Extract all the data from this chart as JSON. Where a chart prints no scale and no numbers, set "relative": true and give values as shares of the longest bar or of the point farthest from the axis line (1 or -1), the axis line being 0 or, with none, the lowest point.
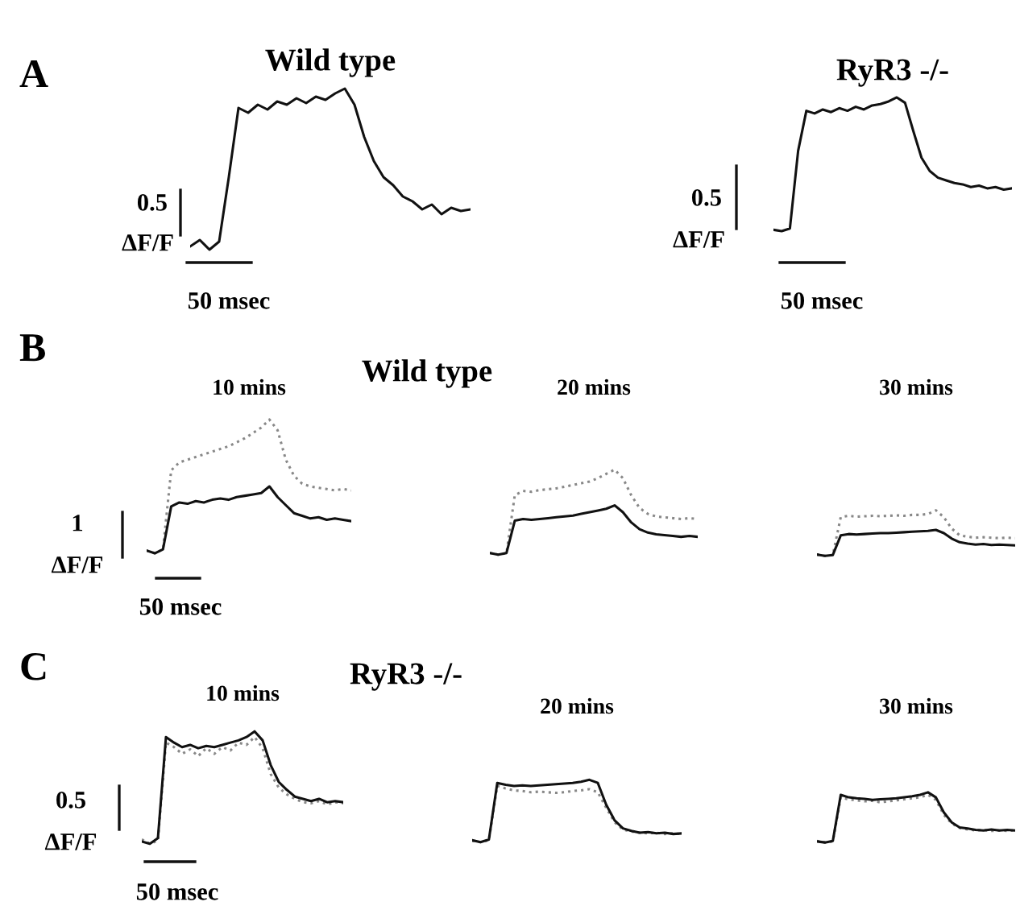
{
  "chart_data": [
    {
      "type": "line",
      "relative": true,
      "title": "Wild type",
      "annotations": [
        "A",
        "0.5",
        "ΔF/F",
        "50 msec"
      ],
      "categories": [
        null,
        null,
        null,
        null,
        null,
        null,
        null,
        null,
        null,
        null,
        null,
        null,
        null,
        null,
        null,
        null,
        null,
        null,
        null,
        null,
        null,
        null,
        null,
        null,
        null,
        null,
        null,
        null,
        null,
        null
      ],
      "series": [
        {
          "color": "#111111",
          "line_style": "solid",
          "values": [
            0.02,
            0.06,
            0.0,
            0.05,
            0.45,
            0.88,
            0.85,
            0.9,
            0.87,
            0.92,
            0.9,
            0.94,
            0.91,
            0.95,
            0.93,
            0.97,
            1.0,
            0.9,
            0.7,
            0.55,
            0.45,
            0.4,
            0.33,
            0.3,
            0.25,
            0.28,
            0.22,
            0.26,
            0.24,
            0.25
          ]
        }
      ]
    },
    {
      "type": "line",
      "relative": true,
      "title": "RyR3 -/-",
      "annotations": [
        "0.5",
        "ΔF/F",
        "50 msec"
      ],
      "categories": [
        null,
        null,
        null,
        null,
        null,
        null,
        null,
        null,
        null,
        null,
        null,
        null,
        null,
        null,
        null,
        null,
        null,
        null,
        null,
        null,
        null,
        null,
        null,
        null,
        null,
        null,
        null,
        null,
        null,
        null
      ],
      "series": [
        {
          "color": "#111111",
          "line_style": "solid",
          "values": [
            0.01,
            0.0,
            0.02,
            0.6,
            0.9,
            0.88,
            0.91,
            0.89,
            0.92,
            0.9,
            0.93,
            0.91,
            0.94,
            0.95,
            0.97,
            1.0,
            0.96,
            0.75,
            0.55,
            0.45,
            0.4,
            0.38,
            0.36,
            0.35,
            0.33,
            0.34,
            0.32,
            0.33,
            0.31,
            0.32
          ]
        }
      ]
    },
    {
      "type": "line",
      "relative": true,
      "title": "10 mins",
      "annotations": [
        "B",
        "Wild type",
        "1",
        "ΔF/F",
        "50 msec"
      ],
      "categories": [
        null,
        null,
        null,
        null,
        null,
        null,
        null,
        null,
        null,
        null,
        null,
        null,
        null,
        null,
        null,
        null,
        null,
        null,
        null,
        null,
        null,
        null,
        null,
        null,
        null,
        null
      ],
      "series": [
        {
          "color": "#888888",
          "line_style": "dotted",
          "values": [
            0.02,
            0.0,
            0.03,
            0.62,
            0.68,
            0.7,
            0.72,
            0.74,
            0.76,
            0.78,
            0.8,
            0.83,
            0.86,
            0.9,
            0.94,
            1.0,
            0.92,
            0.7,
            0.58,
            0.52,
            0.5,
            0.49,
            0.48,
            0.47,
            0.48,
            0.47
          ]
        },
        {
          "color": "#111111",
          "line_style": "solid",
          "values": [
            0.02,
            0.0,
            0.03,
            0.35,
            0.38,
            0.37,
            0.39,
            0.38,
            0.4,
            0.41,
            0.4,
            0.42,
            0.43,
            0.44,
            0.45,
            0.5,
            0.42,
            0.36,
            0.3,
            0.28,
            0.26,
            0.27,
            0.25,
            0.26,
            0.25,
            0.24
          ]
        }
      ]
    },
    {
      "type": "line",
      "relative": true,
      "title": "20 mins",
      "categories": [
        null,
        null,
        null,
        null,
        null,
        null,
        null,
        null,
        null,
        null,
        null,
        null,
        null,
        null,
        null,
        null,
        null,
        null,
        null,
        null,
        null,
        null,
        null,
        null,
        null,
        null
      ],
      "series": [
        {
          "color": "#888888",
          "line_style": "dotted",
          "values": [
            0.02,
            0.0,
            0.02,
            0.7,
            0.75,
            0.74,
            0.76,
            0.77,
            0.78,
            0.8,
            0.82,
            0.84,
            0.86,
            0.9,
            0.95,
            1.0,
            0.9,
            0.7,
            0.55,
            0.48,
            0.45,
            0.44,
            0.43,
            0.42,
            0.43,
            0.42
          ]
        },
        {
          "color": "#111111",
          "line_style": "solid",
          "values": [
            0.02,
            0.0,
            0.02,
            0.4,
            0.42,
            0.41,
            0.42,
            0.43,
            0.44,
            0.45,
            0.46,
            0.48,
            0.5,
            0.52,
            0.54,
            0.58,
            0.5,
            0.38,
            0.3,
            0.26,
            0.24,
            0.23,
            0.22,
            0.21,
            0.22,
            0.21
          ]
        }
      ]
    },
    {
      "type": "line",
      "relative": true,
      "title": "30 mins",
      "categories": [
        null,
        null,
        null,
        null,
        null,
        null,
        null,
        null,
        null,
        null,
        null,
        null,
        null,
        null,
        null,
        null,
        null,
        null,
        null,
        null,
        null,
        null,
        null,
        null,
        null,
        null
      ],
      "series": [
        {
          "color": "#888888",
          "line_style": "dotted",
          "values": [
            0.03,
            0.0,
            0.02,
            0.85,
            0.88,
            0.86,
            0.87,
            0.88,
            0.87,
            0.88,
            0.89,
            0.88,
            0.9,
            0.9,
            0.92,
            1.0,
            0.85,
            0.6,
            0.45,
            0.42,
            0.4,
            0.41,
            0.4,
            0.39,
            0.4,
            0.39
          ]
        },
        {
          "color": "#111111",
          "line_style": "solid",
          "values": [
            0.03,
            0.0,
            0.02,
            0.45,
            0.48,
            0.47,
            0.48,
            0.49,
            0.5,
            0.5,
            0.51,
            0.52,
            0.53,
            0.54,
            0.55,
            0.57,
            0.5,
            0.38,
            0.3,
            0.27,
            0.25,
            0.26,
            0.24,
            0.25,
            0.24,
            0.23
          ]
        }
      ]
    },
    {
      "type": "line",
      "relative": true,
      "title": "10 mins",
      "annotations": [
        "C",
        "RyR3 -/-",
        "0.5",
        "ΔF/F",
        "50 msec"
      ],
      "categories": [
        null,
        null,
        null,
        null,
        null,
        null,
        null,
        null,
        null,
        null,
        null,
        null,
        null,
        null,
        null,
        null,
        null,
        null,
        null,
        null,
        null,
        null,
        null,
        null,
        null,
        null
      ],
      "series": [
        {
          "color": "#888888",
          "line_style": "dotted",
          "values": [
            0.04,
            0.0,
            0.03,
            0.9,
            0.86,
            0.8,
            0.84,
            0.78,
            0.85,
            0.8,
            0.86,
            0.83,
            0.9,
            0.88,
            0.95,
            0.85,
            0.62,
            0.5,
            0.44,
            0.4,
            0.37,
            0.36,
            0.38,
            0.35,
            0.37,
            0.36
          ]
        },
        {
          "color": "#111111",
          "line_style": "solid",
          "values": [
            0.02,
            0.0,
            0.05,
            0.95,
            0.9,
            0.86,
            0.88,
            0.85,
            0.87,
            0.86,
            0.88,
            0.9,
            0.92,
            0.95,
            1.0,
            0.92,
            0.7,
            0.55,
            0.48,
            0.42,
            0.4,
            0.38,
            0.4,
            0.37,
            0.38,
            0.37
          ]
        }
      ]
    },
    {
      "type": "line",
      "relative": true,
      "title": "20 mins",
      "categories": [
        null,
        null,
        null,
        null,
        null,
        null,
        null,
        null,
        null,
        null,
        null,
        null,
        null,
        null,
        null,
        null,
        null,
        null,
        null,
        null,
        null,
        null,
        null,
        null,
        null,
        null
      ],
      "series": [
        {
          "color": "#888888",
          "line_style": "dotted",
          "values": [
            0.02,
            0.0,
            0.03,
            0.9,
            0.86,
            0.83,
            0.82,
            0.8,
            0.81,
            0.8,
            0.79,
            0.8,
            0.82,
            0.83,
            0.85,
            0.8,
            0.55,
            0.32,
            0.2,
            0.17,
            0.15,
            0.14,
            0.15,
            0.13,
            0.14,
            0.13
          ]
        },
        {
          "color": "#111111",
          "line_style": "solid",
          "values": [
            0.03,
            0.0,
            0.04,
            0.95,
            0.92,
            0.9,
            0.91,
            0.9,
            0.91,
            0.92,
            0.93,
            0.94,
            0.95,
            0.97,
            1.0,
            0.95,
            0.6,
            0.35,
            0.22,
            0.18,
            0.15,
            0.16,
            0.14,
            0.15,
            0.13,
            0.14
          ]
        }
      ]
    },
    {
      "type": "line",
      "relative": true,
      "title": "30 mins",
      "categories": [
        null,
        null,
        null,
        null,
        null,
        null,
        null,
        null,
        null,
        null,
        null,
        null,
        null,
        null,
        null,
        null,
        null,
        null,
        null,
        null,
        null,
        null,
        null,
        null,
        null,
        null
      ],
      "series": [
        {
          "color": "#888888",
          "line_style": "dotted",
          "values": [
            0.03,
            0.0,
            0.02,
            0.9,
            0.86,
            0.84,
            0.82,
            0.83,
            0.8,
            0.82,
            0.84,
            0.86,
            0.88,
            0.9,
            0.95,
            0.85,
            0.55,
            0.38,
            0.29,
            0.26,
            0.24,
            0.25,
            0.23,
            0.24,
            0.23,
            0.24
          ]
        },
        {
          "color": "#111111",
          "line_style": "solid",
          "values": [
            0.02,
            0.0,
            0.03,
            0.95,
            0.9,
            0.88,
            0.87,
            0.85,
            0.86,
            0.87,
            0.88,
            0.9,
            0.92,
            0.95,
            1.0,
            0.9,
            0.6,
            0.4,
            0.3,
            0.28,
            0.25,
            0.24,
            0.26,
            0.24,
            0.25,
            0.24
          ]
        }
      ]
    }
  ]
}
